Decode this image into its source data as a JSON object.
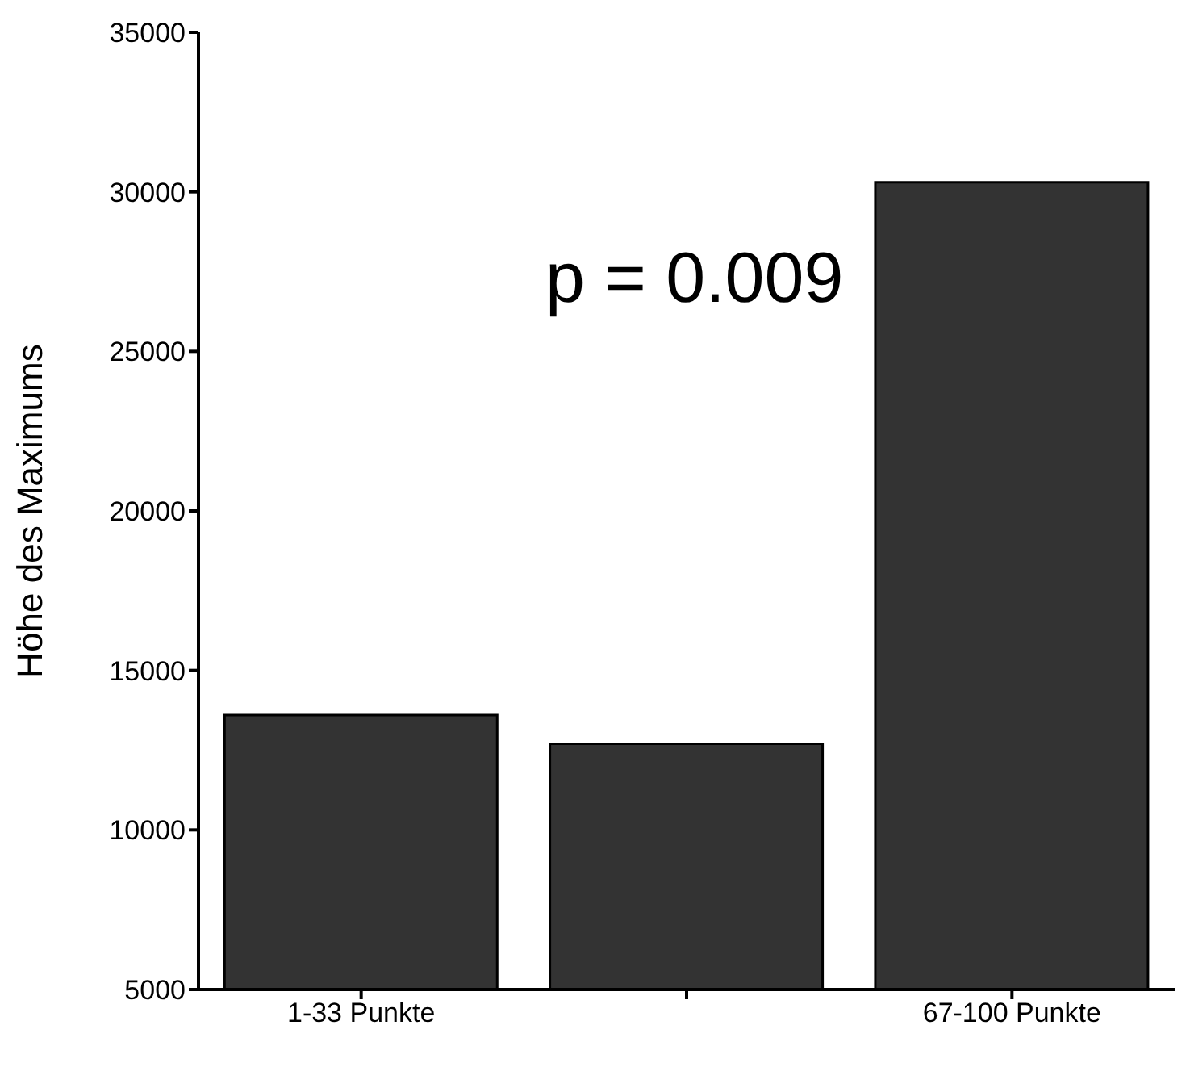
{
  "chart_data": {
    "type": "bar",
    "ylabel": "Höhe des Maximums",
    "categories": [
      "1-33 Punkte",
      null,
      "67-100 Punkte"
    ],
    "values": [
      13600,
      12700,
      30300
    ],
    "color": "#333333",
    "ylim": [
      5000,
      35000
    ],
    "yticks": [
      5000,
      10000,
      15000,
      20000,
      25000,
      30000,
      35000
    ],
    "grid": false,
    "annotations": [
      "p = 0.009"
    ]
  }
}
